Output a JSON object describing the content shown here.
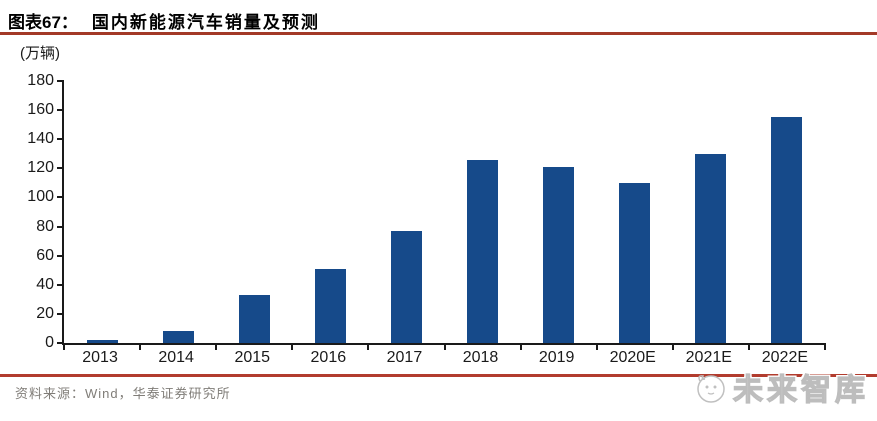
{
  "header": {
    "figure_label": "图表67：",
    "title": "国内新能源汽车销量及预测"
  },
  "chart_data": {
    "type": "bar",
    "title": "国内新能源汽车销量及预测",
    "unit_label": "(万辆)",
    "categories": [
      "2013",
      "2014",
      "2015",
      "2016",
      "2017",
      "2018",
      "2019",
      "2020E",
      "2021E",
      "2022E"
    ],
    "values": [
      2,
      8,
      33,
      51,
      77,
      126,
      121,
      110,
      130,
      155
    ],
    "xlabel": "",
    "ylabel": "(万辆)",
    "ylim": [
      0,
      180
    ],
    "y_ticks": [
      0,
      20,
      40,
      60,
      80,
      100,
      120,
      140,
      160,
      180
    ],
    "grid": false,
    "legend": "none",
    "bar_color": "#164A8A"
  },
  "footer": {
    "source": "资料来源：Wind，华泰证券研究所",
    "watermark": "未来智库"
  },
  "colors": {
    "bar": "#164A8A",
    "top_rule": "#A33927",
    "bottom_rule": "#B23C2E",
    "axis": "#1a1a1a",
    "source_text": "#807D78",
    "watermark": "#C2C2C2"
  }
}
